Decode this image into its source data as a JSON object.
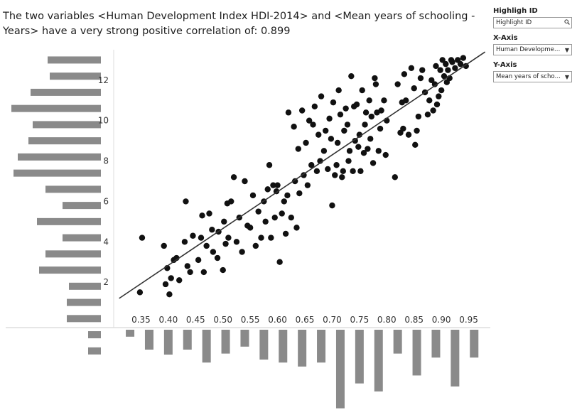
{
  "title": "The two variables <Human Development Index HDI-2014> and <Mean years of schooling - Years> have a very strong positive correlation of: 0.899",
  "controls": {
    "highlight": {
      "label": "Highligh ID",
      "value": "Highlight ID",
      "icon": "search-icon"
    },
    "x_axis": {
      "label": "X-Axis",
      "value": "Human Development I...",
      "icon": "dropdown-arrow-icon"
    },
    "y_axis": {
      "label": "Y-Axis",
      "value": "Mean years of schooli...",
      "icon": "dropdown-arrow-icon"
    }
  },
  "colors": {
    "points": "#111111",
    "bars": "#8a8a8a",
    "trend": "#333333",
    "axis": "#cccccc"
  },
  "chart_data": {
    "type": "scatter",
    "xlim": [
      0.31,
      0.98
    ],
    "ylim": [
      0.5,
      14
    ],
    "x_ticks": [
      "0.35",
      "0.40",
      "0.45",
      "0.50",
      "0.55",
      "0.60",
      "0.65",
      "0.70",
      "0.75",
      "0.80",
      "0.85",
      "0.90",
      "0.95"
    ],
    "y_ticks": [
      "2",
      "4",
      "6",
      "8",
      "10",
      "12"
    ],
    "trend_line": {
      "start": [
        0.31,
        1.2
      ],
      "end": [
        0.98,
        13.4
      ]
    },
    "points": [
      [
        0.348,
        1.5
      ],
      [
        0.352,
        4.2
      ],
      [
        0.392,
        3.8
      ],
      [
        0.395,
        1.9
      ],
      [
        0.398,
        2.7
      ],
      [
        0.402,
        1.4
      ],
      [
        0.405,
        2.2
      ],
      [
        0.41,
        3.1
      ],
      [
        0.415,
        3.2
      ],
      [
        0.42,
        2.1
      ],
      [
        0.43,
        4.0
      ],
      [
        0.432,
        6.0
      ],
      [
        0.435,
        2.8
      ],
      [
        0.44,
        2.5
      ],
      [
        0.445,
        4.3
      ],
      [
        0.455,
        3.1
      ],
      [
        0.46,
        4.2
      ],
      [
        0.462,
        5.3
      ],
      [
        0.465,
        2.5
      ],
      [
        0.47,
        3.8
      ],
      [
        0.475,
        5.4
      ],
      [
        0.48,
        4.6
      ],
      [
        0.482,
        3.5
      ],
      [
        0.49,
        3.2
      ],
      [
        0.492,
        4.5
      ],
      [
        0.5,
        2.6
      ],
      [
        0.502,
        5.0
      ],
      [
        0.505,
        3.9
      ],
      [
        0.508,
        5.9
      ],
      [
        0.51,
        4.2
      ],
      [
        0.515,
        6.0
      ],
      [
        0.52,
        7.2
      ],
      [
        0.525,
        4.0
      ],
      [
        0.53,
        5.2
      ],
      [
        0.535,
        3.5
      ],
      [
        0.54,
        7.0
      ],
      [
        0.545,
        4.8
      ],
      [
        0.55,
        4.7
      ],
      [
        0.555,
        6.3
      ],
      [
        0.56,
        3.8
      ],
      [
        0.565,
        5.5
      ],
      [
        0.57,
        4.2
      ],
      [
        0.575,
        6.0
      ],
      [
        0.578,
        5.0
      ],
      [
        0.582,
        6.6
      ],
      [
        0.585,
        7.8
      ],
      [
        0.588,
        4.2
      ],
      [
        0.592,
        6.8
      ],
      [
        0.595,
        5.2
      ],
      [
        0.598,
        6.5
      ],
      [
        0.6,
        6.8
      ],
      [
        0.604,
        3.0
      ],
      [
        0.608,
        5.4
      ],
      [
        0.612,
        6.0
      ],
      [
        0.615,
        4.4
      ],
      [
        0.618,
        6.3
      ],
      [
        0.62,
        10.4
      ],
      [
        0.625,
        5.2
      ],
      [
        0.63,
        9.7
      ],
      [
        0.632,
        7.0
      ],
      [
        0.635,
        4.7
      ],
      [
        0.638,
        8.6
      ],
      [
        0.64,
        6.4
      ],
      [
        0.645,
        10.5
      ],
      [
        0.648,
        7.3
      ],
      [
        0.652,
        8.9
      ],
      [
        0.655,
        6.8
      ],
      [
        0.658,
        10.0
      ],
      [
        0.662,
        7.8
      ],
      [
        0.665,
        9.8
      ],
      [
        0.668,
        10.7
      ],
      [
        0.672,
        7.5
      ],
      [
        0.675,
        9.3
      ],
      [
        0.678,
        8.0
      ],
      [
        0.68,
        11.2
      ],
      [
        0.685,
        8.5
      ],
      [
        0.688,
        9.5
      ],
      [
        0.692,
        7.6
      ],
      [
        0.695,
        10.1
      ],
      [
        0.698,
        9.1
      ],
      [
        0.7,
        5.8
      ],
      [
        0.702,
        10.9
      ],
      [
        0.705,
        7.3
      ],
      [
        0.708,
        7.8
      ],
      [
        0.71,
        8.9
      ],
      [
        0.712,
        11.5
      ],
      [
        0.715,
        10.3
      ],
      [
        0.718,
        7.2
      ],
      [
        0.72,
        7.5
      ],
      [
        0.722,
        9.5
      ],
      [
        0.725,
        10.6
      ],
      [
        0.728,
        9.8
      ],
      [
        0.73,
        8.0
      ],
      [
        0.732,
        8.5
      ],
      [
        0.735,
        12.2
      ],
      [
        0.738,
        7.5
      ],
      [
        0.74,
        10.7
      ],
      [
        0.742,
        9.0
      ],
      [
        0.745,
        10.8
      ],
      [
        0.748,
        8.7
      ],
      [
        0.75,
        9.3
      ],
      [
        0.752,
        7.5
      ],
      [
        0.755,
        11.5
      ],
      [
        0.758,
        8.4
      ],
      [
        0.76,
        9.8
      ],
      [
        0.762,
        10.4
      ],
      [
        0.765,
        8.6
      ],
      [
        0.768,
        11.0
      ],
      [
        0.77,
        9.1
      ],
      [
        0.772,
        10.2
      ],
      [
        0.775,
        7.9
      ],
      [
        0.778,
        12.1
      ],
      [
        0.78,
        11.8
      ],
      [
        0.782,
        10.4
      ],
      [
        0.785,
        8.5
      ],
      [
        0.788,
        9.6
      ],
      [
        0.79,
        10.5
      ],
      [
        0.795,
        11.0
      ],
      [
        0.798,
        8.3
      ],
      [
        0.8,
        10.0
      ],
      [
        0.815,
        7.2
      ],
      [
        0.82,
        11.8
      ],
      [
        0.825,
        9.4
      ],
      [
        0.828,
        10.9
      ],
      [
        0.83,
        9.6
      ],
      [
        0.832,
        12.3
      ],
      [
        0.835,
        11.0
      ],
      [
        0.84,
        9.3
      ],
      [
        0.845,
        12.6
      ],
      [
        0.85,
        11.6
      ],
      [
        0.852,
        8.8
      ],
      [
        0.855,
        9.5
      ],
      [
        0.858,
        10.2
      ],
      [
        0.862,
        12.1
      ],
      [
        0.865,
        12.5
      ],
      [
        0.87,
        11.4
      ],
      [
        0.875,
        10.3
      ],
      [
        0.878,
        11.0
      ],
      [
        0.882,
        12.0
      ],
      [
        0.885,
        10.5
      ],
      [
        0.888,
        11.8
      ],
      [
        0.89,
        12.7
      ],
      [
        0.892,
        10.8
      ],
      [
        0.895,
        11.2
      ],
      [
        0.898,
        12.5
      ],
      [
        0.9,
        11.5
      ],
      [
        0.902,
        13.0
      ],
      [
        0.905,
        12.2
      ],
      [
        0.908,
        12.8
      ],
      [
        0.91,
        11.9
      ],
      [
        0.912,
        12.5
      ],
      [
        0.915,
        12.1
      ],
      [
        0.918,
        13.0
      ],
      [
        0.92,
        12.9
      ],
      [
        0.925,
        12.6
      ],
      [
        0.93,
        13.0
      ],
      [
        0.935,
        12.8
      ],
      [
        0.94,
        13.1
      ],
      [
        0.945,
        12.7
      ]
    ],
    "y_distribution": [
      {
        "y": 13.0,
        "count": 2.5
      },
      {
        "y": 12.2,
        "count": 2.4
      },
      {
        "y": 11.4,
        "count": 3.3
      },
      {
        "y": 10.6,
        "count": 4.2
      },
      {
        "y": 9.8,
        "count": 3.2
      },
      {
        "y": 9.0,
        "count": 3.4
      },
      {
        "y": 8.2,
        "count": 3.9
      },
      {
        "y": 7.4,
        "count": 4.1
      },
      {
        "y": 6.6,
        "count": 2.6
      },
      {
        "y": 5.8,
        "count": 1.8
      },
      {
        "y": 5.0,
        "count": 3.0
      },
      {
        "y": 4.2,
        "count": 1.8
      },
      {
        "y": 3.4,
        "count": 2.6
      },
      {
        "y": 2.6,
        "count": 2.9
      },
      {
        "y": 1.8,
        "count": 1.5
      },
      {
        "y": 1.0,
        "count": 1.6
      },
      {
        "y": 0.2,
        "count": 1.6
      },
      {
        "y": -0.6,
        "count": 0.6
      },
      {
        "y": -1.4,
        "count": 0.6
      }
    ],
    "x_distribution": [
      {
        "x": 0.33,
        "count": 0.7
      },
      {
        "x": 0.365,
        "count": 2.0
      },
      {
        "x": 0.4,
        "count": 2.5
      },
      {
        "x": 0.435,
        "count": 2.0
      },
      {
        "x": 0.47,
        "count": 3.3
      },
      {
        "x": 0.505,
        "count": 2.4
      },
      {
        "x": 0.54,
        "count": 1.7
      },
      {
        "x": 0.575,
        "count": 3.0
      },
      {
        "x": 0.61,
        "count": 3.3
      },
      {
        "x": 0.645,
        "count": 3.7
      },
      {
        "x": 0.68,
        "count": 3.3
      },
      {
        "x": 0.715,
        "count": 7.9
      },
      {
        "x": 0.75,
        "count": 5.4
      },
      {
        "x": 0.785,
        "count": 6.2
      },
      {
        "x": 0.82,
        "count": 2.4
      },
      {
        "x": 0.855,
        "count": 4.6
      },
      {
        "x": 0.89,
        "count": 2.8
      },
      {
        "x": 0.925,
        "count": 5.7
      },
      {
        "x": 0.96,
        "count": 2.8
      }
    ]
  }
}
